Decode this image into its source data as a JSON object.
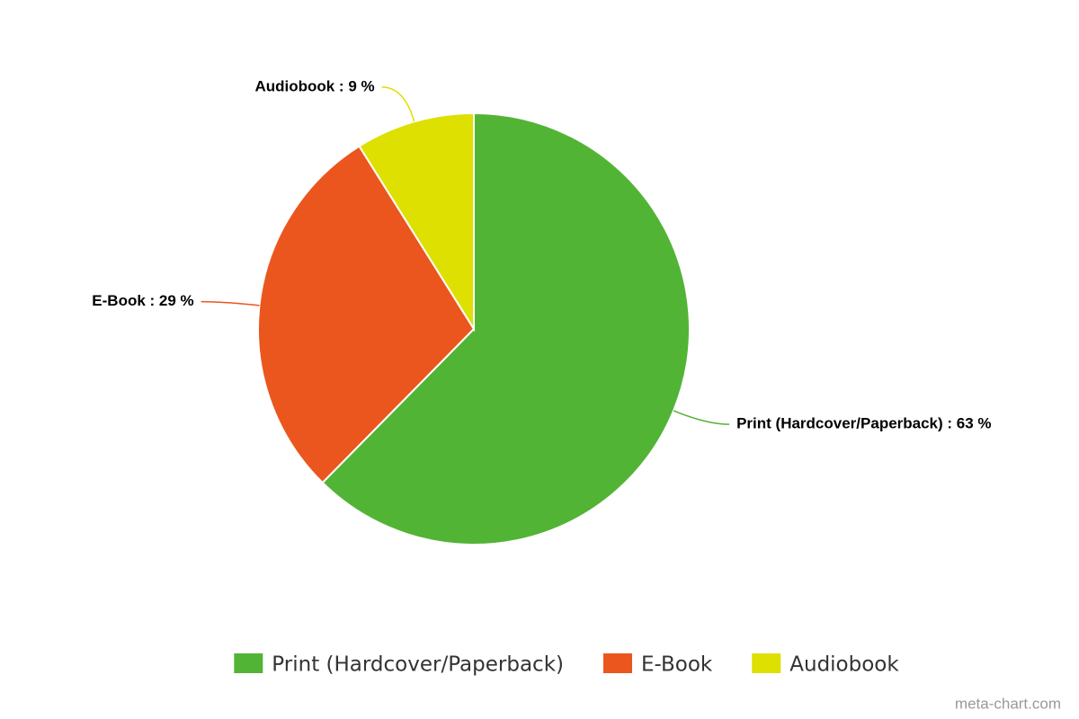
{
  "chart_data": {
    "type": "pie",
    "categories": [
      "Print (Hardcover/Paperback)",
      "E-Book",
      "Audiobook"
    ],
    "values": [
      63,
      29,
      9
    ],
    "value_labels": [
      "Print (Hardcover/Paperback) : 63 %",
      "E-Book : 29 %",
      "Audiobook : 9 %"
    ],
    "colors": [
      "#52b435",
      "#eb561e",
      "#dde000"
    ],
    "legend": "bottom",
    "credit": "meta-chart.com"
  }
}
